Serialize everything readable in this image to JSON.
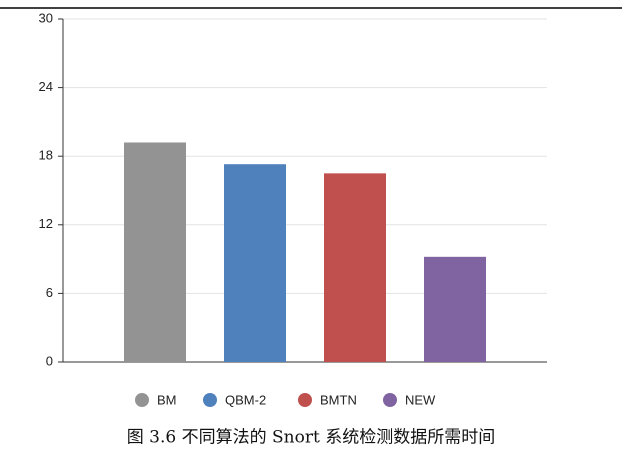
{
  "chart_data": {
    "type": "bar",
    "caption": "图 3.6 不同算法的 Snort 系统检测数据所需时间",
    "categories": [
      "BM",
      "QBM-2",
      "BMTN",
      "NEW"
    ],
    "values": [
      19.2,
      17.3,
      16.5,
      9.2
    ],
    "colors": [
      "#939393",
      "#4f81bd",
      "#c0504d",
      "#8064a2"
    ],
    "ylim": [
      0,
      30
    ],
    "yticks": [
      0,
      6,
      12,
      18,
      24,
      30
    ],
    "grid": true
  }
}
